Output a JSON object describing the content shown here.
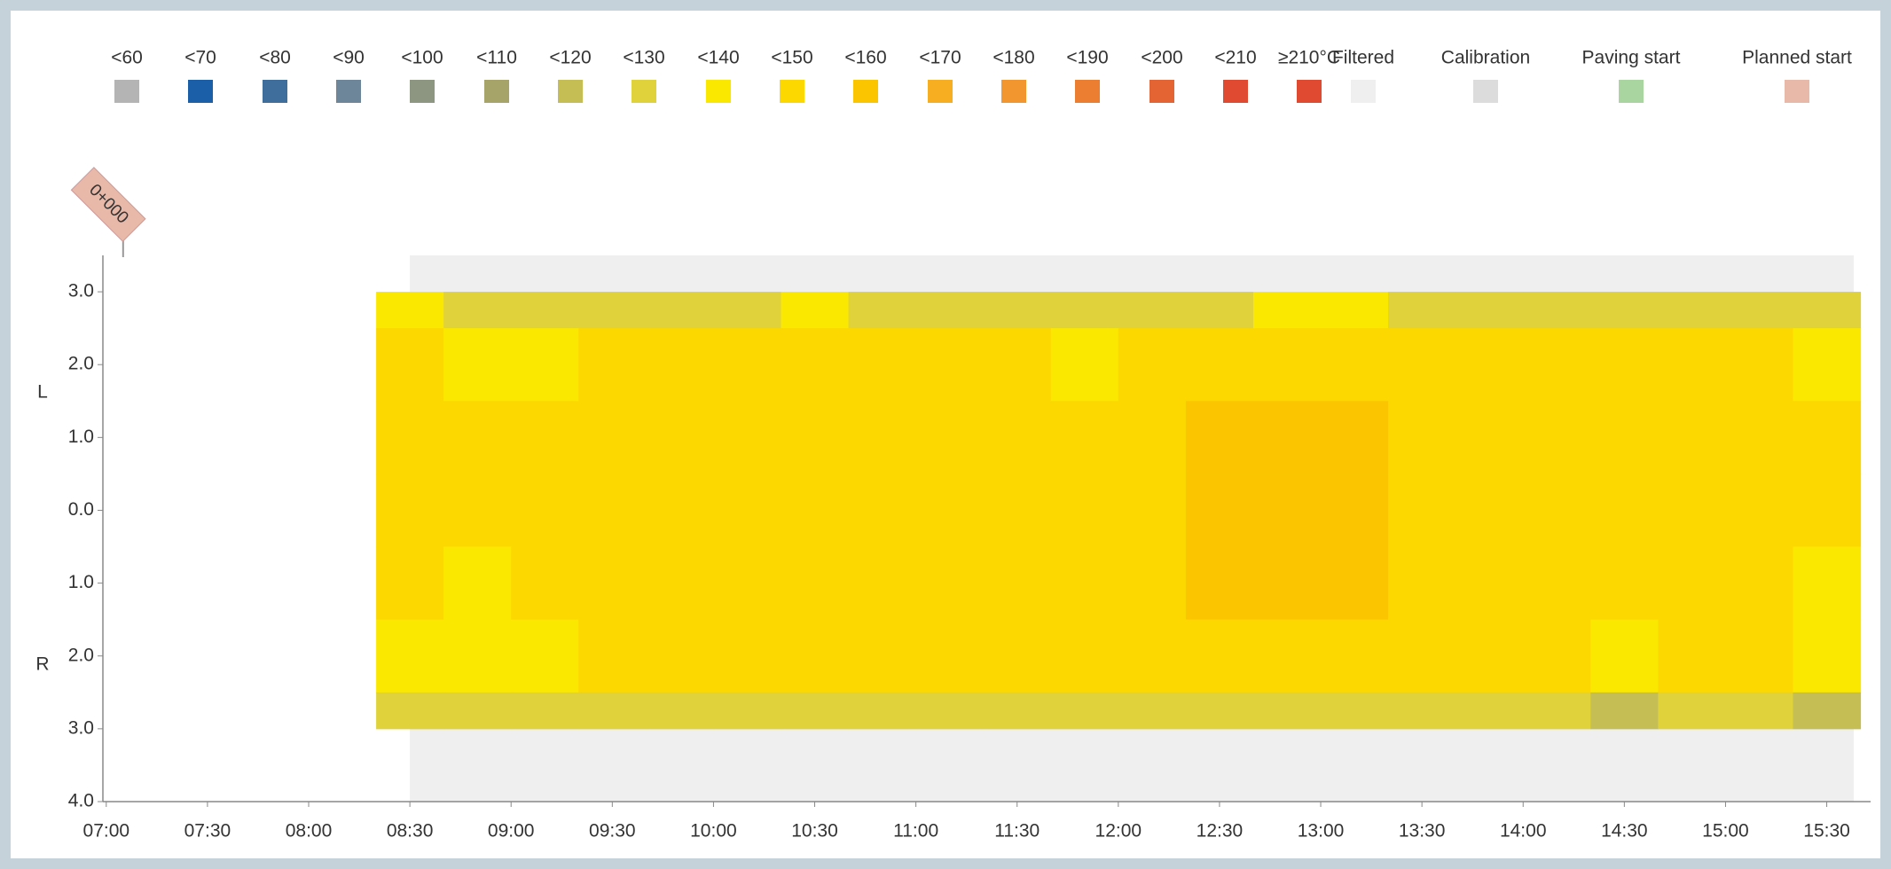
{
  "chart_data": {
    "type": "heatmap",
    "legend": [
      {
        "label": "<60",
        "max": 60,
        "color": "#b4b4b4"
      },
      {
        "label": "<70",
        "max": 70,
        "color": "#1a5fa8"
      },
      {
        "label": "<80",
        "max": 80,
        "color": "#3f6e9c"
      },
      {
        "label": "<90",
        "max": 90,
        "color": "#6e8699"
      },
      {
        "label": "<100",
        "max": 100,
        "color": "#8c9680"
      },
      {
        "label": "<110",
        "max": 110,
        "color": "#a6a468"
      },
      {
        "label": "<120",
        "max": 120,
        "color": "#c4be55"
      },
      {
        "label": "<130",
        "max": 130,
        "color": "#e0d23a"
      },
      {
        "label": "<140",
        "max": 140,
        "color": "#fbe800"
      },
      {
        "label": "<150",
        "max": 150,
        "color": "#fcd800"
      },
      {
        "label": "<160",
        "max": 160,
        "color": "#fbc600"
      },
      {
        "label": "<170",
        "max": 170,
        "color": "#f7ae20"
      },
      {
        "label": "<180",
        "max": 180,
        "color": "#f29630"
      },
      {
        "label": "<190",
        "max": 190,
        "color": "#ec7e32"
      },
      {
        "label": "<200",
        "max": 200,
        "color": "#e46434"
      },
      {
        "label": "<210",
        "max": 210,
        "color": "#e04a30"
      },
      {
        "label": "≥210°C",
        "color": "#e04a30"
      },
      {
        "label": "Filtered",
        "color": "#efefef"
      },
      {
        "label": "Calibration",
        "color": "#dcdcdc"
      },
      {
        "label": "Paving start",
        "color": "#a8d5a0"
      },
      {
        "label": "Planned start",
        "color": "#e8b8a8"
      }
    ],
    "planned_start": {
      "label": "0+000",
      "x": 425
    },
    "y_label_top": "L",
    "y_label_bottom": "R",
    "xlim": [
      419,
      943
    ],
    "ylim": [
      -4,
      3.5
    ],
    "xticks": [
      {
        "value": 420,
        "label": "07:00"
      },
      {
        "value": 450,
        "label": "07:30"
      },
      {
        "value": 480,
        "label": "08:00"
      },
      {
        "value": 510,
        "label": "08:30"
      },
      {
        "value": 540,
        "label": "09:00"
      },
      {
        "value": 570,
        "label": "09:30"
      },
      {
        "value": 600,
        "label": "10:00"
      },
      {
        "value": 630,
        "label": "10:30"
      },
      {
        "value": 660,
        "label": "11:00"
      },
      {
        "value": 690,
        "label": "11:30"
      },
      {
        "value": 720,
        "label": "12:00"
      },
      {
        "value": 750,
        "label": "12:30"
      },
      {
        "value": 780,
        "label": "13:00"
      },
      {
        "value": 810,
        "label": "13:30"
      },
      {
        "value": 840,
        "label": "14:00"
      },
      {
        "value": 870,
        "label": "14:30"
      },
      {
        "value": 900,
        "label": "15:00"
      },
      {
        "value": 930,
        "label": "15:30"
      }
    ],
    "yticks": [
      {
        "value": 3,
        "label": "3.0"
      },
      {
        "value": 2,
        "label": "2.0"
      },
      {
        "value": 1,
        "label": "1.0"
      },
      {
        "value": 0,
        "label": "0.0"
      },
      {
        "value": -1,
        "label": "1.0"
      },
      {
        "value": -2,
        "label": "2.0"
      },
      {
        "value": -3,
        "label": "3.0"
      },
      {
        "value": -4,
        "label": "4.0"
      }
    ],
    "filtered_regions": [
      {
        "x": [
          510,
          938
        ],
        "y": [
          3,
          3.5
        ]
      },
      {
        "x": [
          510,
          938
        ],
        "y": [
          -4,
          -3
        ]
      }
    ],
    "x_edges": [
      500,
      520,
      540,
      560,
      580,
      600,
      620,
      640,
      660,
      680,
      700,
      720,
      740,
      760,
      780,
      800,
      820,
      840,
      860,
      880,
      900,
      920,
      940
    ],
    "y_edges": [
      3,
      2.5,
      1.5,
      0.5,
      -0.5,
      -1.5,
      -2.5,
      -3
    ],
    "values": [
      [
        135,
        128,
        126,
        127,
        129,
        128,
        130,
        127,
        128,
        129,
        126,
        120,
        128,
        131,
        130,
        129,
        128,
        127,
        126,
        128,
        127,
        125
      ],
      [
        140,
        138,
        139,
        141,
        142,
        140,
        143,
        141,
        142,
        140,
        139,
        141,
        145,
        147,
        146,
        143,
        142,
        141,
        140,
        142,
        141,
        139
      ],
      [
        142,
        141,
        143,
        145,
        146,
        144,
        146,
        145,
        147,
        144,
        143,
        146,
        150,
        152,
        151,
        147,
        145,
        144,
        143,
        145,
        143,
        141
      ],
      [
        141,
        140,
        144,
        146,
        147,
        145,
        147,
        146,
        148,
        145,
        144,
        147,
        152,
        153,
        152,
        148,
        146,
        145,
        144,
        146,
        144,
        140
      ],
      [
        140,
        139,
        143,
        145,
        146,
        144,
        146,
        145,
        147,
        144,
        143,
        146,
        151,
        152,
        151,
        147,
        145,
        144,
        142,
        145,
        143,
        139
      ],
      [
        138,
        137,
        139,
        141,
        142,
        140,
        142,
        141,
        143,
        141,
        140,
        142,
        146,
        148,
        147,
        143,
        141,
        140,
        139,
        141,
        140,
        137
      ],
      [
        125,
        122,
        121,
        123,
        124,
        122,
        123,
        121,
        124,
        122,
        120,
        123,
        125,
        127,
        126,
        124,
        123,
        121,
        118,
        122,
        121,
        119
      ]
    ]
  }
}
